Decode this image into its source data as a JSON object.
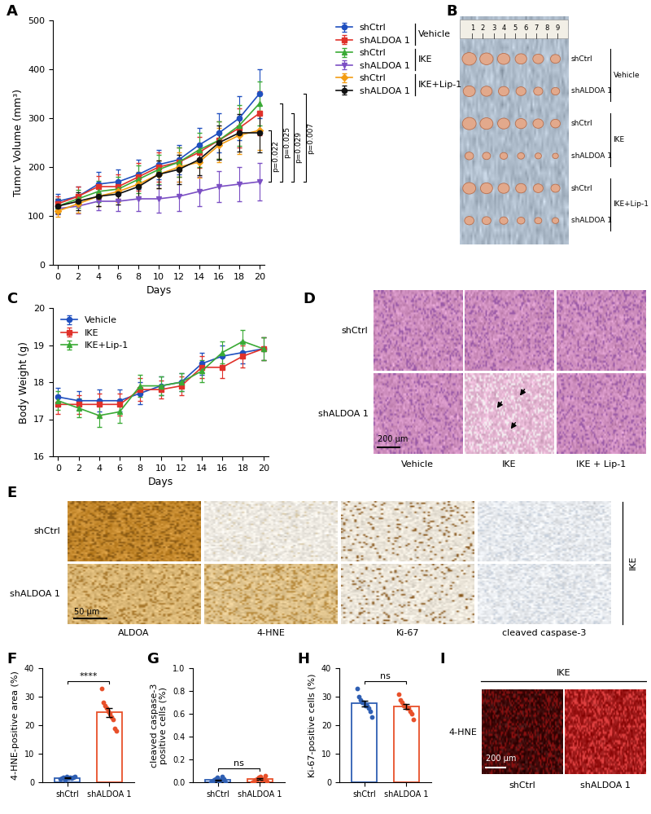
{
  "chart_data": [
    {
      "panel": "A",
      "type": "line",
      "x": [
        0,
        2,
        4,
        6,
        8,
        10,
        12,
        14,
        16,
        18,
        20
      ],
      "xlabel": "Days",
      "ylabel": "Tumor Volume (mm³)",
      "xlim": [
        -0.5,
        20.5
      ],
      "ylim": [
        0,
        500
      ],
      "xticks": [
        0,
        2,
        4,
        6,
        8,
        10,
        12,
        14,
        16,
        18,
        20
      ],
      "yticks": [
        0,
        100,
        200,
        300,
        400,
        500
      ],
      "legend": "upper left",
      "legend_groups": [
        "Vehicle",
        "IKE",
        "IKE+Lip-1"
      ],
      "series": [
        {
          "name": "shCtrl",
          "color": "#1f4fbf",
          "marker": "circle",
          "values": [
            130,
            140,
            165,
            170,
            185,
            205,
            215,
            245,
            270,
            300,
            350
          ],
          "errors": [
            15,
            20,
            25,
            25,
            30,
            30,
            30,
            35,
            40,
            45,
            50
          ]
        },
        {
          "name": "shALDOA 1",
          "color": "#e0312a",
          "marker": "square",
          "values": [
            125,
            140,
            160,
            160,
            180,
            200,
            210,
            230,
            255,
            280,
            310
          ],
          "errors": [
            15,
            20,
            22,
            25,
            28,
            30,
            30,
            32,
            38,
            40,
            45
          ]
        },
        {
          "name": "shCtrl",
          "color": "#3aaa35",
          "marker": "triangle_up",
          "values": [
            120,
            135,
            150,
            155,
            175,
            195,
            210,
            235,
            255,
            285,
            330
          ],
          "errors": [
            15,
            18,
            22,
            25,
            28,
            30,
            30,
            35,
            38,
            42,
            45
          ]
        },
        {
          "name": "shALDOA 1",
          "color": "#7b4fc4",
          "marker": "triangle_down",
          "values": [
            115,
            120,
            130,
            130,
            135,
            135,
            140,
            150,
            160,
            165,
            170
          ],
          "errors": [
            12,
            15,
            18,
            20,
            25,
            28,
            30,
            30,
            32,
            35,
            38
          ]
        },
        {
          "name": "shCtrl",
          "color": "#f39c12",
          "marker": "diamond",
          "values": [
            110,
            125,
            140,
            150,
            165,
            185,
            200,
            210,
            245,
            265,
            275
          ],
          "errors": [
            12,
            18,
            20,
            22,
            25,
            28,
            30,
            32,
            35,
            38,
            40
          ]
        },
        {
          "name": "shALDOA 1",
          "color": "#111111",
          "marker": "circle",
          "values": [
            120,
            130,
            140,
            145,
            160,
            185,
            195,
            215,
            250,
            270,
            270
          ],
          "errors": [
            15,
            18,
            20,
            22,
            25,
            28,
            30,
            32,
            35,
            38,
            40
          ]
        }
      ],
      "annotations": [
        {
          "text": "p=0.022",
          "from": 170,
          "to": 275
        },
        {
          "text": "p=0.025",
          "from": 170,
          "to": 330
        },
        {
          "text": "p=0.029",
          "from": 170,
          "to": 310
        },
        {
          "text": "p=0.007",
          "from": 170,
          "to": 350
        }
      ]
    },
    {
      "panel": "C",
      "type": "line",
      "x": [
        0,
        2,
        4,
        6,
        8,
        10,
        12,
        14,
        16,
        18,
        20
      ],
      "xlabel": "Days",
      "ylabel": "Body Weight (g)",
      "xlim": [
        -0.5,
        20.5
      ],
      "ylim": [
        16,
        20
      ],
      "xticks": [
        0,
        2,
        4,
        6,
        8,
        10,
        12,
        14,
        16,
        18,
        20
      ],
      "yticks": [
        16,
        17,
        18,
        19,
        20
      ],
      "legend": "upper left",
      "series": [
        {
          "name": "Vehicle",
          "color": "#1f4fbf",
          "marker": "circle",
          "values": [
            17.6,
            17.5,
            17.5,
            17.5,
            17.7,
            17.9,
            18.0,
            18.5,
            18.7,
            18.8,
            18.9
          ],
          "errors": [
            0.25,
            0.25,
            0.3,
            0.3,
            0.3,
            0.25,
            0.25,
            0.3,
            0.3,
            0.3,
            0.3
          ]
        },
        {
          "name": "IKE",
          "color": "#e0312a",
          "marker": "square",
          "values": [
            17.4,
            17.4,
            17.4,
            17.4,
            17.8,
            17.8,
            17.9,
            18.4,
            18.4,
            18.7,
            18.9
          ],
          "errors": [
            0.25,
            0.25,
            0.3,
            0.3,
            0.3,
            0.25,
            0.25,
            0.3,
            0.3,
            0.3,
            0.3
          ]
        },
        {
          "name": "IKE+Lip-1",
          "color": "#3aaa35",
          "marker": "triangle_up",
          "values": [
            17.5,
            17.3,
            17.1,
            17.2,
            17.9,
            17.9,
            18.0,
            18.3,
            18.8,
            19.1,
            18.9
          ],
          "errors": [
            0.25,
            0.25,
            0.3,
            0.3,
            0.3,
            0.25,
            0.25,
            0.3,
            0.3,
            0.3,
            0.3
          ]
        }
      ]
    },
    {
      "panel": "F",
      "type": "bar",
      "categories": [
        "shCtrl",
        "shALDOA 1"
      ],
      "ylabel": "4-HNE-positive area (%)",
      "ylim": [
        0,
        40
      ],
      "yticks": [
        0,
        10,
        20,
        30,
        40
      ],
      "colors": [
        "#2f5fb3",
        "#e8502a"
      ],
      "values": [
        1.5,
        24.5
      ],
      "errors": [
        0.1,
        1.5
      ],
      "points": [
        [
          1.2,
          1.5,
          1.8,
          1.0,
          2.0,
          1.4,
          1.6,
          1.3,
          1.7,
          1.9
        ],
        [
          33,
          28,
          27,
          26,
          25,
          24,
          23,
          22,
          19,
          18
        ]
      ],
      "significance": "****"
    },
    {
      "panel": "G",
      "type": "bar",
      "categories": [
        "shCtrl",
        "shALDOA 1"
      ],
      "ylabel": "cleaved caspase-3\npositive cells (%)",
      "ylim": [
        0.0,
        1.0
      ],
      "yticks": [
        0.0,
        0.2,
        0.4,
        0.6,
        0.8,
        1.0
      ],
      "colors": [
        "#2f5fb3",
        "#e8502a"
      ],
      "values": [
        0.02,
        0.03
      ],
      "errors": [
        0.005,
        0.006
      ],
      "points": [
        [
          0.0,
          0.01,
          0.02,
          0.03,
          0.04,
          0.01,
          0.02,
          0.05,
          0.03,
          0.0
        ],
        [
          0.0,
          0.01,
          0.02,
          0.03,
          0.04,
          0.05,
          0.02,
          0.03,
          0.06,
          0.01
        ]
      ],
      "significance": "ns"
    },
    {
      "panel": "H",
      "type": "bar",
      "categories": [
        "shCtrl",
        "shALDOA 1"
      ],
      "ylabel": "Ki-67-positive cells (%)",
      "ylim": [
        0,
        40
      ],
      "yticks": [
        0,
        10,
        20,
        30,
        40
      ],
      "colors": [
        "#2f5fb3",
        "#e8502a"
      ],
      "values": [
        27.6,
        26.5
      ],
      "errors": [
        0.9,
        0.8
      ],
      "points": [
        [
          33,
          30,
          29,
          28,
          28,
          27,
          27,
          26,
          25,
          23
        ],
        [
          31,
          29,
          28,
          27,
          27,
          26,
          26,
          25,
          24,
          22
        ]
      ],
      "significance": "ns"
    }
  ],
  "images": [
    {
      "panel": "B",
      "ruler_marks": [
        1,
        2,
        3,
        4,
        5,
        6,
        7,
        8,
        9
      ],
      "row_labels": [
        "shCtrl",
        "shALDOA 1"
      ],
      "groups": [
        "Vehicle",
        "IKE",
        "IKE+Lip-1"
      ]
    },
    {
      "panel": "D",
      "row_labels": [
        "shCtrl",
        "shALDOA 1"
      ],
      "col_labels": [
        "Vehicle",
        "IKE",
        "IKE + Lip-1"
      ],
      "scale_bar": "200 μm"
    },
    {
      "panel": "E",
      "row_labels": [
        "shCtrl",
        "shALDOA 1"
      ],
      "col_labels": [
        "ALDOA",
        "4-HNE",
        "Ki-67",
        "cleaved caspase-3"
      ],
      "side_label": "IKE",
      "scale_bar": "50 μm"
    },
    {
      "panel": "I",
      "top_label": "IKE",
      "row_labels": [
        "4-HNE"
      ],
      "col_labels": [
        "shCtrl",
        "shALDOA 1"
      ],
      "scale_bar": "200 μm"
    }
  ]
}
